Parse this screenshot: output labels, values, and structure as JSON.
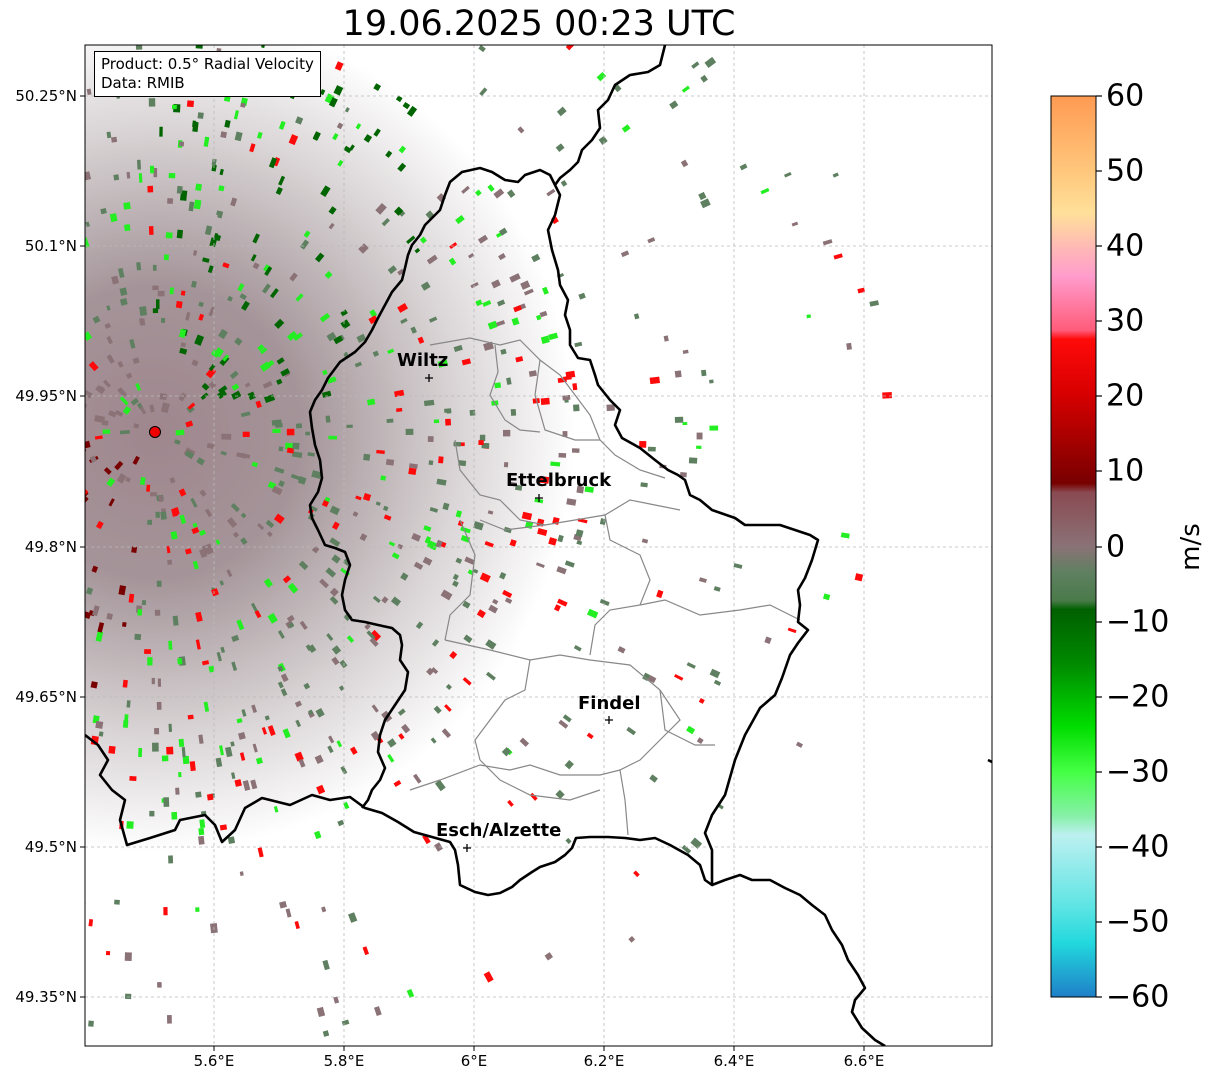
{
  "title": "19.06.2025 00:23 UTC",
  "info": {
    "product": "Product: 0.5° Radial Velocity",
    "data_source": "Data: RMIB"
  },
  "axes": {
    "lat_labels": [
      "50.25°N",
      "50.1°N",
      "49.95°N",
      "49.8°N",
      "49.65°N",
      "49.5°N",
      "49.35°N"
    ],
    "lon_labels": [
      "5.6°E",
      "5.8°E",
      "6°E",
      "6.2°E",
      "6.4°E",
      "6.6°E"
    ]
  },
  "cities": [
    {
      "name": "Wiltz"
    },
    {
      "name": "Ettelbruck"
    },
    {
      "name": "Findel"
    },
    {
      "name": "Esch/Alzette"
    }
  ],
  "colorbar": {
    "unit": "m/s",
    "ticks": [
      "60",
      "50",
      "40",
      "30",
      "20",
      "10",
      "0",
      "−10",
      "−20",
      "−30",
      "−40",
      "−50",
      "−60"
    ],
    "min": -60,
    "max": 60
  },
  "colors": {
    "approaching_dark": "#006400",
    "approaching_bright": "#22ee22",
    "zero_green": "#5e8060",
    "zero_mauve": "#8a7276",
    "receding_dark": "#780000",
    "receding_bright": "#ff0a0a",
    "radar_site": "#ee0000",
    "border": "#000000",
    "canton": "#888888"
  }
}
